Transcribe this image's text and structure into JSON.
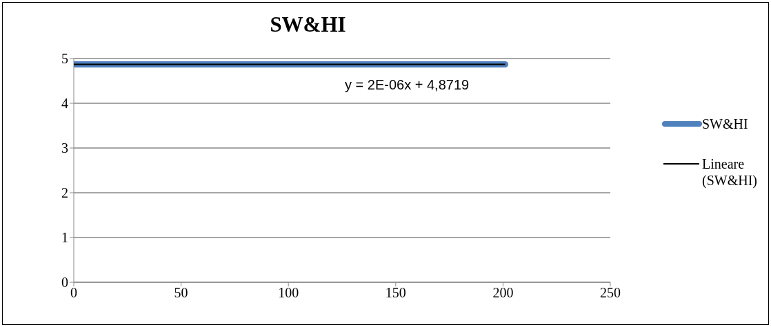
{
  "chart_data": {
    "type": "line",
    "title": "SW&HI",
    "x": [
      0,
      201
    ],
    "series": [
      {
        "name": "SW&HI",
        "color": "#4f81bd",
        "values": [
          4.87,
          4.87
        ]
      },
      {
        "name": "Lineare (SW&HI)",
        "color": "#000000",
        "values": [
          4.87,
          4.87
        ]
      }
    ],
    "xlim": [
      0,
      250
    ],
    "xticks": [
      0,
      50,
      100,
      150,
      200,
      250
    ],
    "ylim": [
      0,
      5
    ],
    "yticks": [
      0,
      1,
      2,
      3,
      4,
      5
    ],
    "grid": "y",
    "legend": "right",
    "marker": "none",
    "line_style": "solid",
    "annotations": [
      "y = 2E-06x + 4,8719"
    ]
  }
}
